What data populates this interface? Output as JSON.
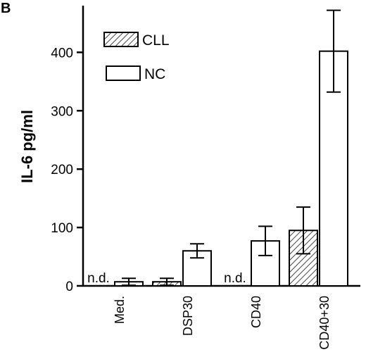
{
  "panel_label": "B",
  "chart_data": {
    "type": "bar",
    "ylabel": "IL-6 pg/ml",
    "xlabel": "",
    "ylim": [
      0,
      480
    ],
    "yticks": [
      0,
      100,
      200,
      300,
      400
    ],
    "categories": [
      "Med.",
      "DSP30",
      "CD40",
      "CD40+30"
    ],
    "series": [
      {
        "name": "CLL",
        "pattern": "hatched",
        "values": [
          null,
          7,
          null,
          95
        ],
        "errors": [
          null,
          6,
          null,
          40
        ],
        "annotations": [
          "n.d.",
          null,
          "n.d.",
          null
        ]
      },
      {
        "name": "NC",
        "pattern": "open",
        "values": [
          7,
          60,
          77,
          402
        ],
        "errors": [
          6,
          12,
          25,
          70
        ],
        "annotations": [
          null,
          null,
          null,
          null
        ]
      }
    ],
    "legend": {
      "position": "top-left"
    },
    "grid": false,
    "colors": {
      "stroke": "#000000",
      "fill": "#ffffff"
    }
  }
}
